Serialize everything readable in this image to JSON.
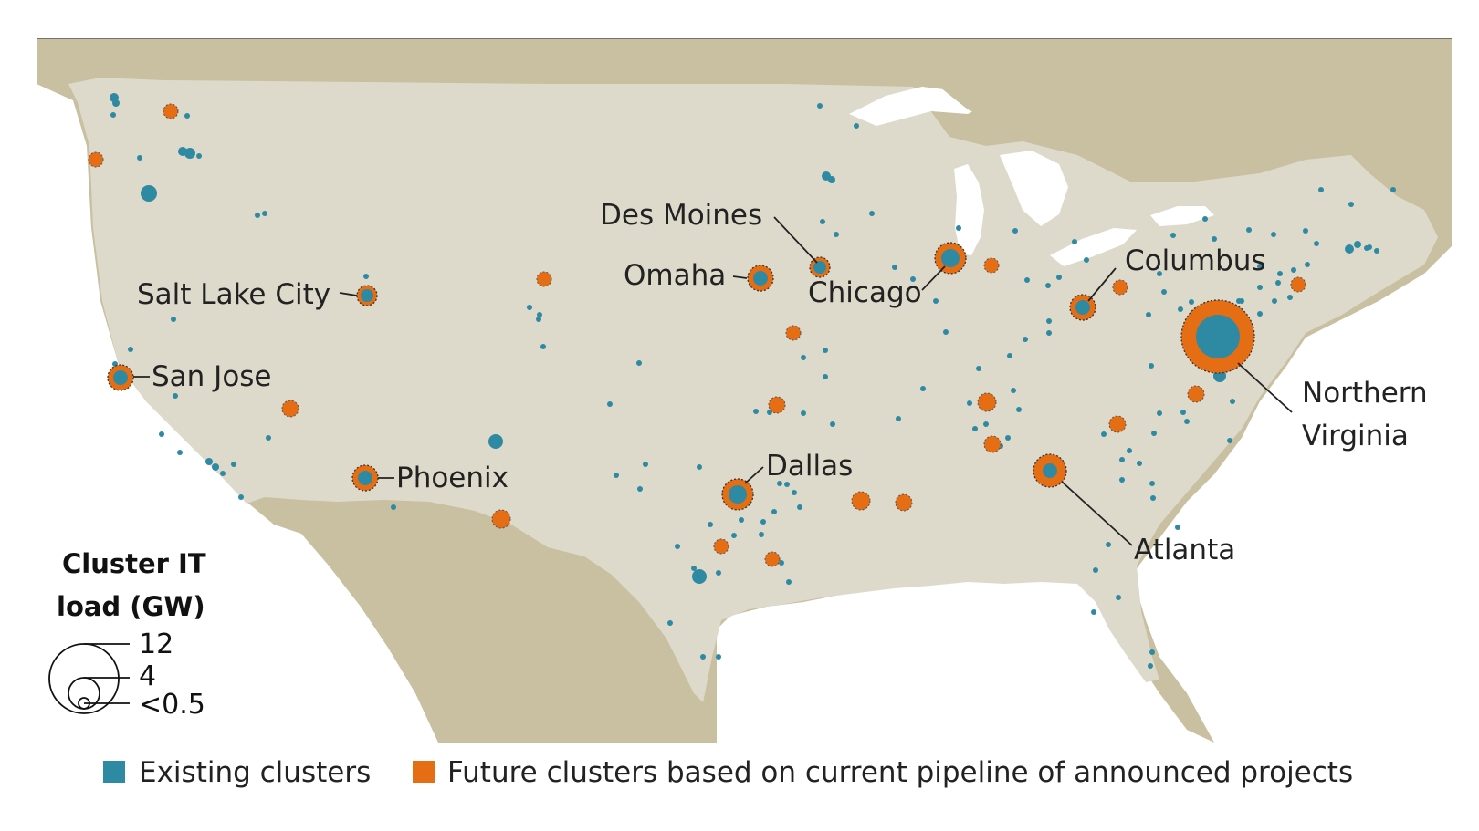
{
  "colors": {
    "existing": "#2e8aa3",
    "future": "#e56d14",
    "land_us": "#dedacb",
    "land_other": "#c8c0a0",
    "water": "#ffffff",
    "leader": "#222222"
  },
  "legend": {
    "size_title_line1": "Cluster IT",
    "size_title_line2": "load (GW)",
    "size_values": [
      "12",
      "4",
      "<0.5"
    ],
    "existing_label": "Existing clusters",
    "future_label": "Future clusters based on current pipeline of announced projects"
  },
  "chart_data": {
    "type": "scatter",
    "size_scale_gw": [
      12,
      4,
      0.5
    ],
    "series": [
      {
        "name": "Existing clusters"
      },
      {
        "name": "Future clusters based on current pipeline of announced projects"
      }
    ],
    "labeled_clusters": [
      {
        "name": "Des Moines",
        "existing_gw": 0.6,
        "future_gw": 0.9
      },
      {
        "name": "Omaha",
        "existing_gw": 0.8,
        "future_gw": 1.3
      },
      {
        "name": "Chicago",
        "existing_gw": 1.1,
        "future_gw": 2.0
      },
      {
        "name": "Columbus",
        "existing_gw": 0.8,
        "future_gw": 1.5
      },
      {
        "name": "Salt Lake City",
        "existing_gw": 0.5,
        "future_gw": 0.9
      },
      {
        "name": "San Jose",
        "existing_gw": 0.8,
        "future_gw": 1.3
      },
      {
        "name": "Phoenix",
        "existing_gw": 0.7,
        "future_gw": 1.3
      },
      {
        "name": "Dallas",
        "existing_gw": 1.0,
        "future_gw": 2.0
      },
      {
        "name": "Atlanta",
        "existing_gw": 0.8,
        "future_gw": 2.2
      },
      {
        "name": "Northern Virginia",
        "existing_gw": 4.5,
        "future_gw": 12
      }
    ]
  }
}
